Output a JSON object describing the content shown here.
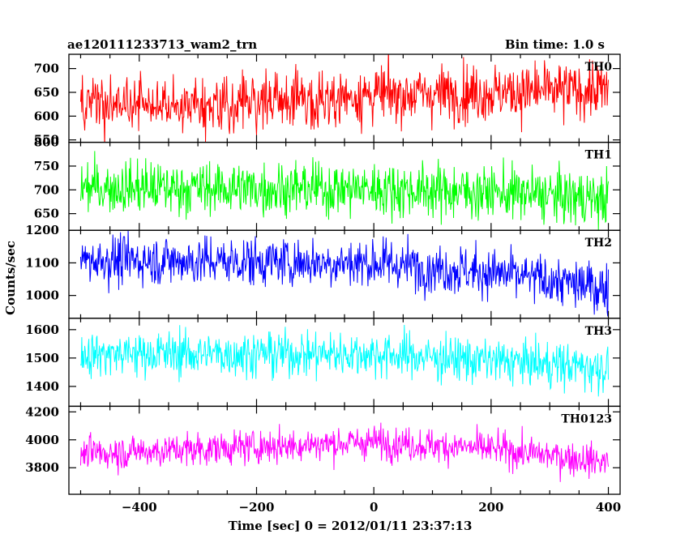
{
  "header": {
    "title": "ae120111233713_wam2_trn",
    "bin_time": "Bin time: 1.0 s"
  },
  "chart_data": {
    "type": "line",
    "title": "ae120111233713_wam2_trn",
    "xlabel": "Time [sec] 0 = 2012/01/11 23:37:13",
    "ylabel": "Counts/sec",
    "xlim": [
      -520,
      420
    ],
    "x_ticks": [
      -400,
      -200,
      0,
      200,
      400
    ],
    "x_tick_labels": [
      "−400",
      "−200",
      "0",
      "200",
      "400"
    ],
    "x_range": [
      -500,
      400
    ],
    "grid": false,
    "panels": [
      {
        "label": "TH0",
        "color": "#ff0000",
        "ylim": [
          545,
          730
        ],
        "y_ticks": [
          550,
          600,
          650,
          700
        ],
        "mean_trend": [
          [
            -500,
            620
          ],
          [
            -200,
            628
          ],
          [
            0,
            645
          ],
          [
            400,
            655
          ]
        ],
        "noise_sd": 30
      },
      {
        "label": "TH1",
        "color": "#00ff00",
        "ylim": [
          615,
          800
        ],
        "y_ticks": [
          650,
          700,
          750,
          800
        ],
        "mean_trend": [
          [
            -500,
            705
          ],
          [
            0,
            702
          ],
          [
            200,
            695
          ],
          [
            400,
            680
          ]
        ],
        "noise_sd": 28
      },
      {
        "label": "TH2",
        "color": "#0000ff",
        "ylim": [
          930,
          1200
        ],
        "y_ticks": [
          1000,
          1100,
          1200
        ],
        "mean_trend": [
          [
            -500,
            1110
          ],
          [
            0,
            1100
          ],
          [
            200,
            1070
          ],
          [
            400,
            1020
          ]
        ],
        "noise_sd": 38
      },
      {
        "label": "TH3",
        "color": "#00ffff",
        "ylim": [
          1330,
          1640
        ],
        "y_ticks": [
          1400,
          1500,
          1600
        ],
        "mean_trend": [
          [
            -500,
            1515
          ],
          [
            0,
            1515
          ],
          [
            200,
            1490
          ],
          [
            400,
            1465
          ]
        ],
        "noise_sd": 40
      },
      {
        "label": "TH0123",
        "color": "#ff00ff",
        "ylim": [
          3610,
          4240
        ],
        "y_ticks": [
          3800,
          4000,
          4200
        ],
        "mean_trend": [
          [
            -500,
            3900
          ],
          [
            0,
            3985
          ],
          [
            200,
            3935
          ],
          [
            400,
            3840
          ]
        ],
        "noise_sd": 60
      }
    ]
  }
}
